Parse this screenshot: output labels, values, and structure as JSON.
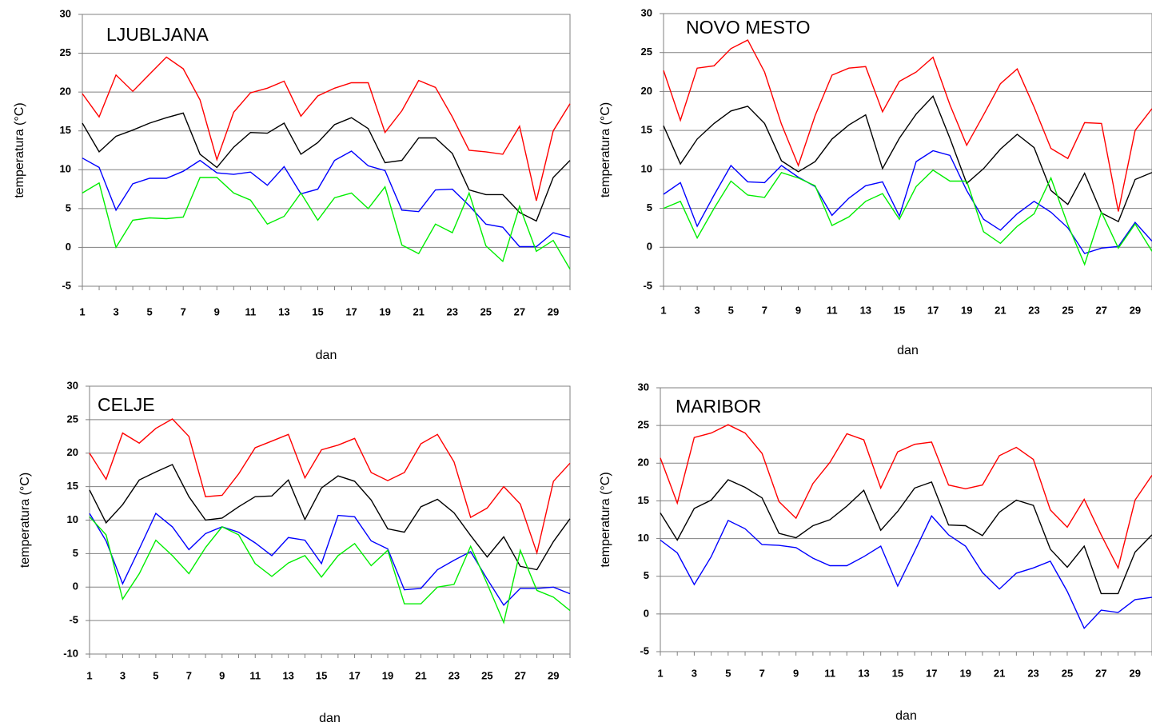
{
  "chart_data": [
    {
      "type": "line",
      "title": "LJUBLJANA",
      "ylabel": "temperatura (°C)",
      "xlabel": "dan",
      "categories": [
        1,
        null,
        3,
        null,
        5,
        null,
        7,
        null,
        9,
        null,
        11,
        null,
        13,
        null,
        15,
        null,
        17,
        null,
        19,
        null,
        21,
        null,
        23,
        null,
        25,
        null,
        27,
        null,
        29,
        null
      ],
      "ylim": [
        -5,
        30
      ],
      "yticks": [
        -5,
        0,
        5,
        10,
        15,
        20,
        25,
        30
      ],
      "grid": true,
      "series": [
        {
          "color": "#ff0000",
          "values": [
            19.8,
            16.8,
            22.2,
            20.1,
            22.3,
            24.5,
            23.0,
            19.0,
            11.3,
            17.4,
            19.9,
            20.5,
            21.4,
            16.9,
            19.5,
            20.5,
            21.2,
            21.2,
            14.8,
            17.6,
            21.5,
            20.6,
            16.8,
            12.5,
            12.3,
            12.0,
            15.6,
            6.0,
            15.0,
            18.5
          ]
        },
        {
          "color": "#000000",
          "values": [
            16.0,
            12.3,
            14.3,
            15.1,
            16.0,
            16.7,
            17.3,
            12.0,
            10.3,
            12.9,
            14.8,
            14.7,
            16.0,
            12.0,
            13.5,
            15.8,
            16.7,
            15.3,
            10.9,
            11.2,
            14.1,
            14.1,
            12.1,
            7.4,
            6.8,
            6.8,
            4.5,
            3.4,
            9.0,
            11.2
          ]
        },
        {
          "color": "#0000ff",
          "values": [
            11.5,
            10.3,
            4.8,
            8.2,
            8.9,
            8.9,
            9.8,
            11.2,
            9.6,
            9.4,
            9.7,
            8.0,
            10.4,
            6.9,
            7.5,
            11.2,
            12.4,
            10.5,
            9.9,
            4.8,
            4.6,
            7.4,
            7.5,
            5.4,
            3.0,
            2.6,
            0.1,
            0.1,
            1.9,
            1.3
          ]
        },
        {
          "color": "#00ee00",
          "values": [
            7.0,
            8.3,
            0.0,
            3.5,
            3.8,
            3.7,
            3.9,
            9.0,
            9.0,
            7.0,
            6.1,
            3.0,
            4.0,
            7.0,
            3.5,
            6.4,
            7.0,
            5.0,
            7.8,
            0.3,
            -0.8,
            3.0,
            1.9,
            7.0,
            0.2,
            -1.8,
            5.3,
            -0.5,
            0.9,
            -2.8
          ]
        }
      ]
    },
    {
      "type": "line",
      "title": "NOVO MESTO",
      "ylabel": "temperatura (°C)",
      "xlabel": "dan",
      "categories": [
        1,
        null,
        3,
        null,
        5,
        null,
        7,
        null,
        9,
        null,
        11,
        null,
        13,
        null,
        15,
        null,
        17,
        null,
        19,
        null,
        21,
        null,
        23,
        null,
        25,
        null,
        27,
        null,
        29,
        null
      ],
      "ylim": [
        -5,
        30
      ],
      "yticks": [
        -5,
        0,
        5,
        10,
        15,
        20,
        25,
        30
      ],
      "grid": true,
      "series": [
        {
          "color": "#ff0000",
          "values": [
            22.7,
            16.3,
            23.0,
            23.3,
            25.5,
            26.6,
            22.5,
            15.8,
            10.5,
            16.9,
            22.1,
            23.0,
            23.2,
            17.4,
            21.3,
            22.5,
            24.4,
            18.3,
            13.1,
            17.0,
            21.0,
            22.9,
            18.0,
            12.7,
            11.4,
            16.0,
            15.9,
            4.6,
            15.0,
            17.8
          ]
        },
        {
          "color": "#000000",
          "values": [
            15.6,
            10.7,
            13.9,
            15.9,
            17.5,
            18.1,
            15.9,
            11.1,
            9.7,
            11.0,
            13.9,
            15.7,
            17.0,
            10.1,
            14.0,
            17.1,
            19.4,
            14.0,
            8.2,
            10.1,
            12.6,
            14.5,
            12.8,
            7.3,
            5.5,
            9.5,
            4.4,
            3.3,
            8.7,
            9.6
          ]
        },
        {
          "color": "#0000ff",
          "values": [
            6.8,
            8.3,
            2.7,
            6.7,
            10.5,
            8.4,
            8.3,
            10.5,
            9.0,
            7.8,
            4.1,
            6.3,
            7.9,
            8.4,
            4.0,
            11.0,
            12.4,
            11.8,
            7.3,
            3.6,
            2.2,
            4.3,
            5.9,
            4.5,
            2.5,
            -0.8,
            -0.1,
            0.1,
            3.2,
            0.8
          ]
        },
        {
          "color": "#00ee00",
          "values": [
            5.0,
            5.9,
            1.2,
            5.0,
            8.5,
            6.7,
            6.4,
            9.6,
            8.9,
            7.9,
            2.8,
            3.9,
            5.9,
            6.9,
            3.6,
            7.8,
            9.9,
            8.5,
            8.5,
            2.0,
            0.5,
            2.7,
            4.3,
            8.9,
            2.9,
            -2.2,
            4.5,
            -0.1,
            3.0,
            -0.5
          ]
        }
      ]
    },
    {
      "type": "line",
      "title": "CELJE",
      "ylabel": "temperatura (°C)",
      "xlabel": "dan",
      "categories": [
        1,
        null,
        3,
        null,
        5,
        null,
        7,
        null,
        9,
        null,
        11,
        null,
        13,
        null,
        15,
        null,
        17,
        null,
        19,
        null,
        21,
        null,
        23,
        null,
        25,
        null,
        27,
        null,
        29,
        null
      ],
      "ylim": [
        -10,
        30
      ],
      "yticks": [
        -10,
        -5,
        0,
        5,
        10,
        15,
        20,
        25,
        30
      ],
      "grid": true,
      "series": [
        {
          "color": "#ff0000",
          "values": [
            20.0,
            16.1,
            23.0,
            21.5,
            23.7,
            25.1,
            22.5,
            13.5,
            13.7,
            16.9,
            20.8,
            21.8,
            22.8,
            16.3,
            20.5,
            21.2,
            22.2,
            17.1,
            15.9,
            17.1,
            21.4,
            22.8,
            18.7,
            10.4,
            11.8,
            15.0,
            12.4,
            5.1,
            15.8,
            18.5
          ]
        },
        {
          "color": "#000000",
          "values": [
            14.5,
            9.6,
            12.3,
            16.0,
            17.2,
            18.3,
            13.5,
            10.0,
            10.3,
            12.0,
            13.5,
            13.6,
            16.0,
            10.1,
            14.8,
            16.6,
            15.8,
            13.0,
            8.7,
            8.2,
            12.0,
            13.1,
            11.1,
            7.7,
            4.5,
            7.5,
            3.1,
            2.6,
            6.8,
            10.2
          ]
        },
        {
          "color": "#0000ff",
          "values": [
            11.0,
            6.9,
            0.5,
            5.7,
            11.0,
            9.0,
            5.6,
            8.0,
            9.0,
            8.2,
            6.6,
            4.7,
            7.4,
            7.0,
            3.5,
            10.7,
            10.5,
            6.9,
            5.7,
            -0.4,
            -0.2,
            2.6,
            4.0,
            5.3,
            1.2,
            -2.7,
            -0.2,
            -0.2,
            0.0,
            -1.0
          ]
        },
        {
          "color": "#00ee00",
          "values": [
            10.5,
            7.8,
            -1.8,
            2.0,
            7.0,
            4.7,
            2.0,
            5.9,
            9.0,
            7.8,
            3.5,
            1.6,
            3.6,
            4.7,
            1.5,
            4.7,
            6.5,
            3.2,
            5.5,
            -2.5,
            -2.5,
            0.0,
            0.4,
            6.1,
            0.5,
            -5.3,
            5.5,
            -0.5,
            -1.5,
            -3.5
          ]
        }
      ]
    },
    {
      "type": "line",
      "title": "MARIBOR",
      "ylabel": "temperatura (°C)",
      "xlabel": "dan",
      "categories": [
        1,
        null,
        3,
        null,
        5,
        null,
        7,
        null,
        9,
        null,
        11,
        null,
        13,
        null,
        15,
        null,
        17,
        null,
        19,
        null,
        21,
        null,
        23,
        null,
        25,
        null,
        27,
        null,
        29,
        null
      ],
      "ylim": [
        -5,
        30
      ],
      "yticks": [
        -5,
        0,
        5,
        10,
        15,
        20,
        25,
        30
      ],
      "grid": true,
      "series": [
        {
          "color": "#ff0000",
          "values": [
            20.7,
            14.7,
            23.4,
            24.0,
            25.1,
            24.0,
            21.3,
            14.9,
            12.7,
            17.3,
            20.1,
            23.9,
            23.1,
            16.7,
            21.5,
            22.5,
            22.8,
            17.1,
            16.6,
            17.1,
            21.0,
            22.1,
            20.5,
            13.8,
            11.5,
            15.2,
            10.5,
            6.1,
            15.1,
            18.4
          ]
        },
        {
          "color": "#000000",
          "values": [
            13.4,
            9.8,
            14.0,
            15.1,
            17.8,
            16.8,
            15.4,
            10.7,
            10.1,
            11.7,
            12.5,
            14.3,
            16.4,
            11.1,
            13.6,
            16.7,
            17.5,
            11.8,
            11.7,
            10.4,
            13.5,
            15.1,
            14.4,
            8.6,
            6.2,
            9.0,
            2.7,
            2.7,
            8.2,
            10.5
          ]
        },
        {
          "color": "#0000ff",
          "values": [
            9.8,
            8.1,
            3.9,
            7.6,
            12.4,
            11.3,
            9.2,
            9.1,
            8.8,
            7.4,
            6.4,
            6.4,
            7.6,
            9.0,
            3.7,
            8.3,
            13.0,
            10.5,
            9.0,
            5.5,
            3.3,
            5.4,
            6.1,
            7.0,
            3.0,
            -1.9,
            0.5,
            0.2,
            1.9,
            2.2
          ]
        }
      ]
    }
  ]
}
